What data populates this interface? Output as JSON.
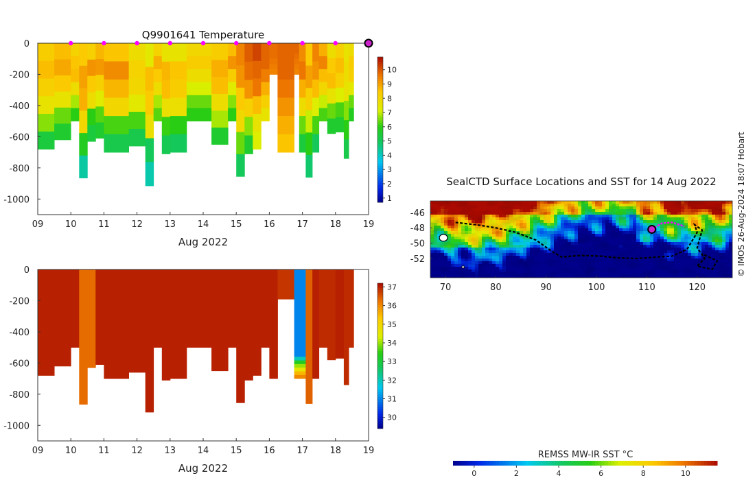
{
  "chart_data": [
    {
      "type": "heatmap",
      "title": "Q9901641  Temperature",
      "xlabel": "Aug 2022",
      "ylabel": "",
      "x_ticks": [
        "09",
        "10",
        "11",
        "12",
        "13",
        "14",
        "15",
        "16",
        "17",
        "18",
        "19"
      ],
      "y_ticks": [
        "0",
        "-200",
        "-400",
        "-600",
        "-800",
        "-1000"
      ],
      "xlim": [
        9,
        19
      ],
      "ylim": [
        -1100,
        0
      ],
      "colorbar": {
        "ticks": [
          "1",
          "2",
          "3",
          "4",
          "5",
          "6",
          "7",
          "8",
          "9",
          "10"
        ],
        "range": [
          0.7,
          10.9
        ]
      },
      "profile_markers_x": [
        10,
        11,
        12,
        13,
        14,
        15,
        16,
        17,
        18
      ],
      "current_position_marker_x": 19,
      "profiles": [
        {
          "x": 9.0,
          "depth": 680,
          "values": [
            8.3,
            8.6,
            8.2,
            7.6,
            6.6,
            5.4
          ]
        },
        {
          "x": 9.5,
          "depth": 620,
          "values": [
            8.6,
            8.9,
            8.4,
            7.6,
            6.4,
            5.6
          ]
        },
        {
          "x": 10.0,
          "depth": 500,
          "values": [
            8.1,
            8.5,
            8.6,
            7.8,
            6.8,
            6.0
          ]
        },
        {
          "x": 10.25,
          "depth": 865,
          "values": [
            8.4,
            9.0,
            8.8,
            8.0,
            5.8,
            4.3
          ]
        },
        {
          "x": 10.5,
          "depth": 630,
          "values": [
            8.2,
            9.2,
            8.4,
            7.8,
            6.0,
            5.4
          ]
        },
        {
          "x": 10.75,
          "depth": 610,
          "values": [
            8.7,
            9.1,
            8.2,
            7.3,
            6.3,
            5.6
          ]
        },
        {
          "x": 11.0,
          "depth": 700,
          "values": [
            8.5,
            9.3,
            8.7,
            8.0,
            6.2,
            5.2
          ]
        },
        {
          "x": 11.75,
          "depth": 660,
          "values": [
            7.8,
            8.1,
            8.0,
            7.4,
            6.2,
            5.2
          ]
        },
        {
          "x": 12.25,
          "depth": 915,
          "values": [
            7.4,
            8.6,
            8.4,
            7.7,
            5.0,
            4.2
          ]
        },
        {
          "x": 12.5,
          "depth": 500,
          "values": [
            8.1,
            8.8,
            8.4,
            7.8,
            6.8,
            6.3
          ]
        },
        {
          "x": 12.75,
          "depth": 710,
          "values": [
            7.6,
            8.7,
            8.6,
            7.7,
            6.1,
            5.1
          ]
        },
        {
          "x": 13.0,
          "depth": 700,
          "values": [
            7.6,
            8.5,
            8.3,
            7.7,
            6.0,
            5.0
          ]
        },
        {
          "x": 13.5,
          "depth": 500,
          "values": [
            8.0,
            8.3,
            7.8,
            7.1,
            6.4,
            6.0
          ]
        },
        {
          "x": 14.25,
          "depth": 650,
          "values": [
            8.3,
            8.8,
            8.6,
            7.8,
            6.8,
            5.6
          ]
        },
        {
          "x": 14.75,
          "depth": 500,
          "values": [
            8.6,
            9.2,
            8.3,
            7.3,
            6.6,
            6.0
          ]
        },
        {
          "x": 15.0,
          "depth": 855,
          "values": [
            9.4,
            9.2,
            8.4,
            7.9,
            6.4,
            5.0
          ]
        },
        {
          "x": 15.25,
          "depth": 710,
          "values": [
            9.9,
            9.7,
            9.2,
            8.2,
            6.6,
            5.6
          ]
        },
        {
          "x": 15.5,
          "depth": 680,
          "values": [
            10.2,
            9.8,
            9.6,
            8.6,
            7.6,
            7.2
          ]
        },
        {
          "x": 15.75,
          "depth": 500,
          "values": [
            9.8,
            9.8,
            9.5,
            8.8,
            8.2,
            7.6
          ]
        },
        {
          "x": 16.0,
          "depth": 200,
          "values": [
            9.7,
            9.7,
            9.7,
            9.6,
            9.5,
            9.4
          ]
        },
        {
          "x": 16.25,
          "depth": 700,
          "values": [
            9.8,
            9.8,
            9.6,
            9.2,
            8.8,
            8.5
          ]
        },
        {
          "x": 16.75,
          "depth": 200,
          "values": [
            9.8,
            9.8,
            9.7,
            9.6,
            9.5,
            9.4
          ]
        },
        {
          "x": 16.9,
          "depth": 700,
          "values": [
            9.3,
            9.6,
            8.8,
            7.8,
            6.4,
            5.4
          ]
        },
        {
          "x": 17.1,
          "depth": 860,
          "values": [
            8.4,
            9.0,
            8.2,
            7.0,
            6.0,
            4.8
          ]
        },
        {
          "x": 17.3,
          "depth": 700,
          "values": [
            9.4,
            9.2,
            8.6,
            7.2,
            6.2,
            5.0
          ]
        },
        {
          "x": 17.5,
          "depth": 500,
          "values": [
            8.8,
            9.4,
            8.6,
            8.0,
            7.0,
            6.2
          ]
        },
        {
          "x": 17.75,
          "depth": 580,
          "values": [
            7.8,
            8.4,
            8.6,
            7.6,
            6.4,
            5.6
          ]
        },
        {
          "x": 18.0,
          "depth": 570,
          "values": [
            8.2,
            8.6,
            8.2,
            7.2,
            6.2,
            5.6
          ]
        },
        {
          "x": 18.25,
          "depth": 740,
          "values": [
            7.6,
            7.8,
            7.6,
            6.6,
            6.0,
            5.2
          ]
        },
        {
          "x": 18.4,
          "depth": 500,
          "values": [
            7.8,
            8.3,
            8.2,
            7.4,
            6.4,
            5.8
          ]
        }
      ]
    },
    {
      "type": "heatmap",
      "title": "",
      "xlabel": "Aug 2022",
      "ylabel": "",
      "x_ticks": [
        "09",
        "10",
        "11",
        "12",
        "13",
        "14",
        "15",
        "16",
        "17",
        "18",
        "19"
      ],
      "y_ticks": [
        "0",
        "-200",
        "-400",
        "-600",
        "-800",
        "-1000"
      ],
      "xlim": [
        9,
        19
      ],
      "ylim": [
        -1100,
        0
      ],
      "colorbar": {
        "ticks": [
          "30",
          "31",
          "32",
          "33",
          "34",
          "35",
          "36",
          "37"
        ],
        "range": [
          29.4,
          37.2
        ]
      },
      "profiles": [
        {
          "x": 9.0,
          "depth": 680,
          "values": [
            37.0
          ]
        },
        {
          "x": 9.5,
          "depth": 620,
          "values": [
            37.0
          ]
        },
        {
          "x": 10.0,
          "depth": 500,
          "values": [
            37.0
          ]
        },
        {
          "x": 10.25,
          "depth": 865,
          "values": [
            36.3
          ]
        },
        {
          "x": 10.5,
          "depth": 630,
          "values": [
            36.3
          ]
        },
        {
          "x": 10.75,
          "depth": 610,
          "values": [
            37.0
          ]
        },
        {
          "x": 11.0,
          "depth": 700,
          "values": [
            37.0
          ]
        },
        {
          "x": 11.75,
          "depth": 660,
          "values": [
            37.0
          ]
        },
        {
          "x": 12.25,
          "depth": 915,
          "values": [
            37.0
          ]
        },
        {
          "x": 12.5,
          "depth": 500,
          "values": [
            37.0
          ]
        },
        {
          "x": 12.75,
          "depth": 710,
          "values": [
            37.0
          ]
        },
        {
          "x": 13.0,
          "depth": 700,
          "values": [
            37.0
          ]
        },
        {
          "x": 13.5,
          "depth": 500,
          "values": [
            37.0
          ]
        },
        {
          "x": 14.25,
          "depth": 650,
          "values": [
            37.0
          ]
        },
        {
          "x": 14.75,
          "depth": 500,
          "values": [
            37.0
          ]
        },
        {
          "x": 15.0,
          "depth": 855,
          "values": [
            37.0
          ]
        },
        {
          "x": 15.25,
          "depth": 710,
          "values": [
            37.0
          ]
        },
        {
          "x": 15.5,
          "depth": 680,
          "values": [
            37.0
          ]
        },
        {
          "x": 15.75,
          "depth": 500,
          "values": [
            37.0
          ]
        },
        {
          "x": 16.0,
          "depth": 700,
          "values": [
            37.0
          ]
        },
        {
          "x": 16.25,
          "depth": 190,
          "values": [
            36.8
          ]
        },
        {
          "x": 16.75,
          "depth": 700,
          "values": [
            31.0,
            31.0,
            31.0,
            31.0,
            31.0,
            31.0,
            31.0,
            31.0,
            31.0,
            31.0,
            31.0,
            31.0,
            31.0,
            31.0,
            31.0,
            31.0,
            31.0,
            31.0,
            31.0,
            31.0,
            31.0,
            31.0,
            31.0,
            31.0,
            32.0,
            33.3,
            34.0,
            34.6,
            35.5,
            36.0
          ]
        },
        {
          "x": 17.1,
          "depth": 860,
          "values": [
            36.4
          ]
        },
        {
          "x": 17.3,
          "depth": 700,
          "values": [
            37.0
          ]
        },
        {
          "x": 17.5,
          "depth": 500,
          "values": [
            36.9
          ]
        },
        {
          "x": 17.75,
          "depth": 580,
          "values": [
            36.9
          ]
        },
        {
          "x": 18.0,
          "depth": 570,
          "values": [
            37.0
          ]
        },
        {
          "x": 18.25,
          "depth": 740,
          "values": [
            36.9
          ]
        },
        {
          "x": 18.4,
          "depth": 500,
          "values": [
            36.9
          ]
        }
      ]
    },
    {
      "type": "heatmap",
      "title": "SealCTD Surface Locations and SST for 14 Aug 2022",
      "xlabel": "",
      "ylabel": "",
      "x_ticks": [
        "70",
        "80",
        "90",
        "100",
        "110",
        "120"
      ],
      "y_ticks": [
        "-46",
        "-48",
        "-50",
        "-52"
      ],
      "xlim": [
        67,
        127
      ],
      "ylim": [
        -54.5,
        -44.5
      ],
      "colorbar": {
        "label": "REMSS MW-IR SST °C",
        "ticks": [
          "0",
          "2",
          "4",
          "6",
          "8",
          "10"
        ],
        "range": [
          -1,
          11.5
        ]
      },
      "track_points": [
        [
          72,
          -47.3
        ],
        [
          76,
          -47.6
        ],
        [
          80,
          -48.0
        ],
        [
          84,
          -48.6
        ],
        [
          88,
          -49.6
        ],
        [
          91,
          -51.0
        ],
        [
          93,
          -51.8
        ],
        [
          97,
          -51.6
        ],
        [
          101,
          -51.7
        ],
        [
          104,
          -51.9
        ],
        [
          108,
          -52.0
        ],
        [
          112,
          -51.8
        ],
        [
          115,
          -51.7
        ],
        [
          118,
          -50.8
        ],
        [
          120,
          -48.6
        ],
        [
          119.5,
          -47.6
        ],
        [
          121,
          -48.3
        ],
        [
          120,
          -50.6
        ],
        [
          121.5,
          -52.0
        ],
        [
          120,
          -53.0
        ],
        [
          123,
          -53.4
        ],
        [
          124,
          -52.3
        ],
        [
          121,
          -51.4
        ]
      ],
      "recent_track_points": [
        [
          111,
          -48.2
        ],
        [
          113,
          -47.4
        ],
        [
          115,
          -47.3
        ],
        [
          117.5,
          -47.8
        ]
      ],
      "current_position": [
        111,
        -48.2
      ]
    }
  ],
  "credit": "© IMOS 26-Aug-2024 18:07 Hobart"
}
